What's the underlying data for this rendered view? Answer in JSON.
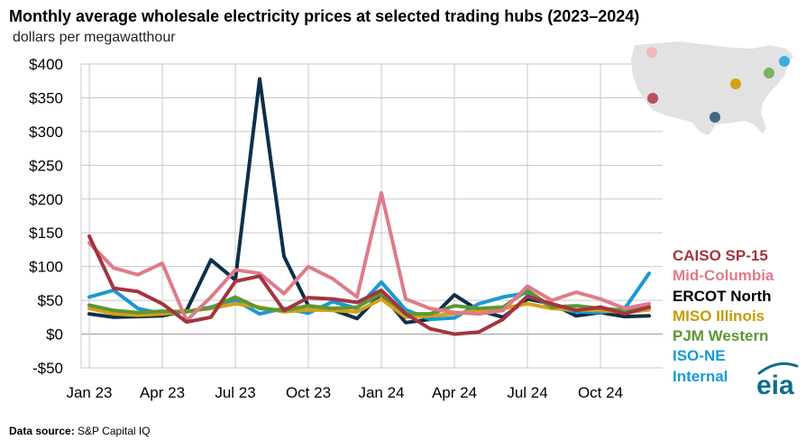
{
  "header": {
    "title": "Monthly average wholesale electricity prices at selected trading hubs (2023–2024)",
    "subtitle": "dollars per megawatthour"
  },
  "source": {
    "label": "Data source:",
    "text": "S&P Capital IQ"
  },
  "logo": {
    "text": "eia",
    "icon": "eia-logo-icon"
  },
  "map": {
    "icon": "us-map-icon"
  },
  "legend": {
    "caiso": "CAISO SP-15",
    "midc": "Mid-Columbia",
    "ercot": "ERCOT North",
    "miso": "MISO Illinois",
    "pjm": "PJM Western",
    "isone_line1": "ISO-NE",
    "isone_line2": "Internal"
  },
  "chart_data": {
    "type": "line",
    "x": [
      "Jan 23",
      "Feb 23",
      "Mar 23",
      "Apr 23",
      "May 23",
      "Jun 23",
      "Jul 23",
      "Aug 23",
      "Sep 23",
      "Oct 23",
      "Nov 23",
      "Dec 23",
      "Jan 24",
      "Feb 24",
      "Mar 24",
      "Apr 24",
      "May 24",
      "Jun 24",
      "Jul 24",
      "Aug 24",
      "Sep 24",
      "Oct 24",
      "Nov 24",
      "Dec 24"
    ],
    "xtick_labels": [
      "Jan 23",
      "Apr 23",
      "Jul 23",
      "Oct 23",
      "Jan 24",
      "Apr 24",
      "Jul 24",
      "Oct 24"
    ],
    "ytick_labels": [
      "$400",
      "$350",
      "$300",
      "$250",
      "$200",
      "$150",
      "$100",
      "$50",
      "$0",
      "-$50"
    ],
    "yticks": [
      400,
      350,
      300,
      250,
      200,
      150,
      100,
      50,
      0,
      -50
    ],
    "ylim": [
      -50,
      400
    ],
    "grid": "horizontal",
    "series": [
      {
        "name": "ERCOT North",
        "color": "#0d2f4a",
        "values": [
          30,
          25,
          26,
          27,
          35,
          110,
          80,
          378,
          115,
          42,
          36,
          23,
          60,
          17,
          22,
          58,
          35,
          25,
          52,
          45,
          27,
          32,
          26,
          27
        ]
      },
      {
        "name": "ISO-NE Internal",
        "color": "#1b98d5",
        "values": [
          55,
          65,
          38,
          30,
          33,
          40,
          50,
          30,
          38,
          31,
          48,
          38,
          77,
          36,
          22,
          24,
          45,
          55,
          61,
          40,
          33,
          32,
          38,
          90
        ]
      },
      {
        "name": "MISO Illinois",
        "color": "#d4a017",
        "values": [
          38,
          30,
          28,
          30,
          34,
          38,
          45,
          40,
          33,
          36,
          35,
          33,
          52,
          25,
          27,
          30,
          35,
          38,
          45,
          38,
          36,
          35,
          32,
          36
        ]
      },
      {
        "name": "PJM Western",
        "color": "#5d9732",
        "values": [
          43,
          35,
          32,
          34,
          33,
          39,
          55,
          38,
          35,
          42,
          38,
          40,
          60,
          30,
          30,
          42,
          38,
          40,
          65,
          40,
          42,
          38,
          35,
          40
        ]
      },
      {
        "name": "Mid-Columbia",
        "color": "#df7b8a",
        "values": [
          135,
          98,
          88,
          105,
          20,
          55,
          95,
          90,
          60,
          100,
          82,
          55,
          209,
          52,
          38,
          32,
          30,
          35,
          71,
          50,
          62,
          52,
          38,
          45
        ]
      },
      {
        "name": "CAISO SP-15",
        "color": "#a4343f",
        "values": [
          145,
          68,
          63,
          45,
          18,
          25,
          78,
          86,
          35,
          54,
          52,
          47,
          65,
          30,
          8,
          0,
          3,
          22,
          56,
          45,
          35,
          40,
          30,
          40
        ]
      }
    ]
  },
  "colors": {
    "caiso": "#a4343f",
    "midc": "#df7b8a",
    "ercot": "#000000",
    "miso": "#c89a00",
    "pjm": "#5d9732",
    "isone": "#1b98d5",
    "grid": "#c8c8c8",
    "map": "#e2e2e2",
    "logo": "#0f6d8e"
  }
}
